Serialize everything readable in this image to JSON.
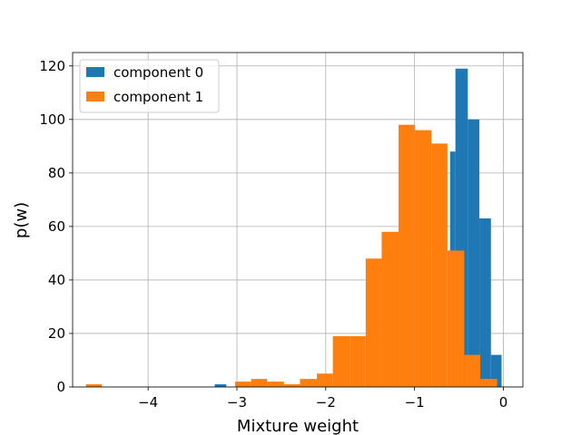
{
  "chart_data": {
    "type": "bar",
    "xlabel": "Mixture weight",
    "ylabel": "p(w)",
    "xlim": [
      -4.85,
      0.22
    ],
    "ylim": [
      0,
      125
    ],
    "xticks": [
      -4,
      -3,
      -2,
      -1,
      0
    ],
    "xtick_labels": [
      "−4",
      "−3",
      "−2",
      "−1",
      "0"
    ],
    "yticks": [
      0,
      20,
      40,
      60,
      80,
      100,
      120
    ],
    "ytick_labels": [
      "0",
      "20",
      "40",
      "60",
      "80",
      "100",
      "120"
    ],
    "grid": true,
    "legend_position": "top-left",
    "series": [
      {
        "name": "component 0",
        "color": "#1f77b4",
        "bins": [
          {
            "x0": -3.25,
            "x1": -3.12,
            "y": 1
          },
          {
            "x0": -0.6,
            "x1": -0.54,
            "y": 88
          },
          {
            "x0": -0.54,
            "x1": -0.4,
            "y": 119
          },
          {
            "x0": -0.4,
            "x1": -0.27,
            "y": 100
          },
          {
            "x0": -0.27,
            "x1": -0.14,
            "y": 63
          },
          {
            "x0": -0.14,
            "x1": -0.02,
            "y": 12
          }
        ]
      },
      {
        "name": "component 1",
        "color": "#ff7f0e",
        "bins": [
          {
            "x0": -4.7,
            "x1": -4.52,
            "y": 1
          },
          {
            "x0": -3.02,
            "x1": -2.84,
            "y": 2
          },
          {
            "x0": -2.84,
            "x1": -2.66,
            "y": 3
          },
          {
            "x0": -2.66,
            "x1": -2.47,
            "y": 2
          },
          {
            "x0": -2.47,
            "x1": -2.29,
            "y": 1
          },
          {
            "x0": -2.29,
            "x1": -2.1,
            "y": 3
          },
          {
            "x0": -2.1,
            "x1": -1.92,
            "y": 5
          },
          {
            "x0": -1.92,
            "x1": -1.73,
            "y": 19
          },
          {
            "x0": -1.73,
            "x1": -1.55,
            "y": 19
          },
          {
            "x0": -1.55,
            "x1": -1.37,
            "y": 48
          },
          {
            "x0": -1.37,
            "x1": -1.18,
            "y": 58
          },
          {
            "x0": -1.18,
            "x1": -1.0,
            "y": 98
          },
          {
            "x0": -1.0,
            "x1": -0.81,
            "y": 96
          },
          {
            "x0": -0.81,
            "x1": -0.63,
            "y": 91
          },
          {
            "x0": -0.63,
            "x1": -0.44,
            "y": 51
          },
          {
            "x0": -0.44,
            "x1": -0.26,
            "y": 12
          },
          {
            "x0": -0.26,
            "x1": -0.07,
            "y": 3
          }
        ]
      }
    ]
  }
}
